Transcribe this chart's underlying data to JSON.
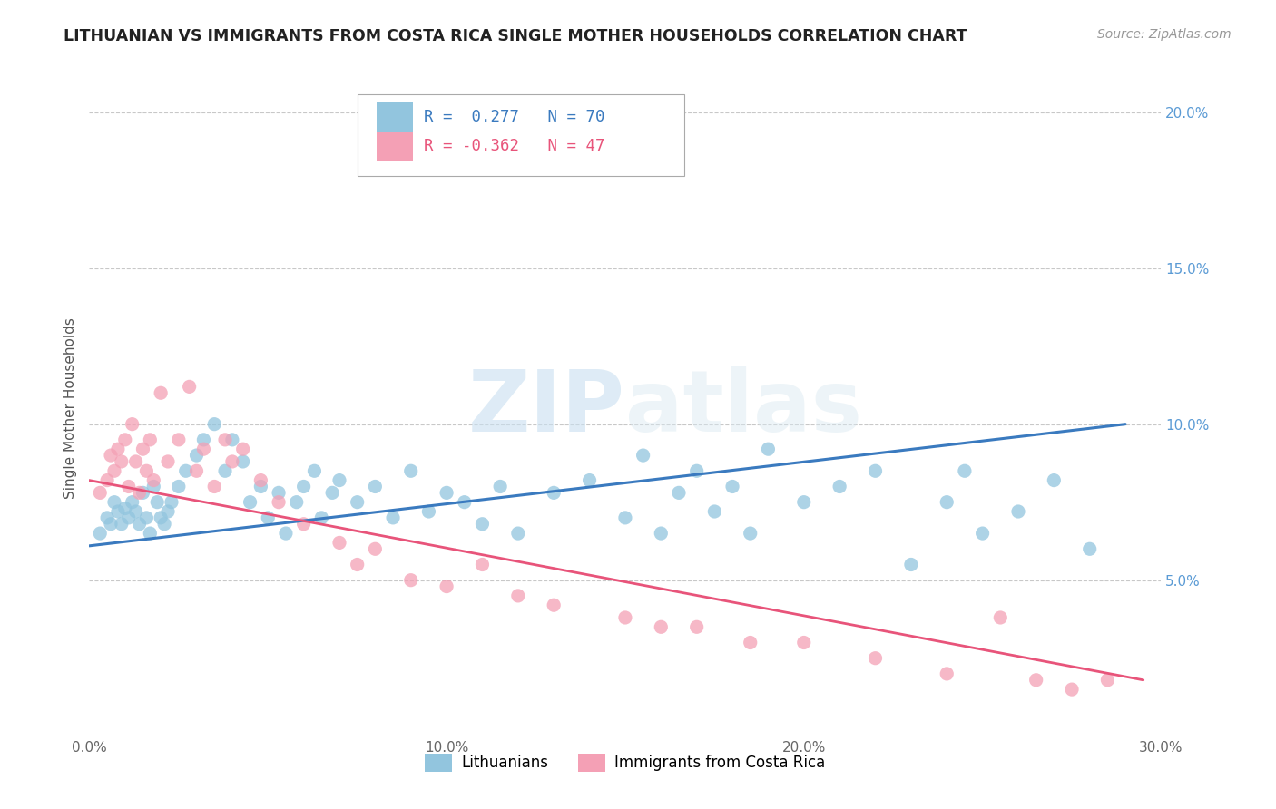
{
  "title": "LITHUANIAN VS IMMIGRANTS FROM COSTA RICA SINGLE MOTHER HOUSEHOLDS CORRELATION CHART",
  "source": "Source: ZipAtlas.com",
  "ylabel": "Single Mother Households",
  "xlim": [
    0.0,
    0.3
  ],
  "ylim": [
    0.0,
    0.21
  ],
  "yticks": [
    0.05,
    0.1,
    0.15,
    0.2
  ],
  "ytick_labels": [
    "5.0%",
    "10.0%",
    "15.0%",
    "20.0%"
  ],
  "xticks": [
    0.0,
    0.05,
    0.1,
    0.15,
    0.2,
    0.25,
    0.3
  ],
  "xtick_labels": [
    "0.0%",
    "",
    "10.0%",
    "",
    "20.0%",
    "",
    "30.0%"
  ],
  "legend_labels": [
    "Lithuanians",
    "Immigrants from Costa Rica"
  ],
  "blue_color": "#92c5de",
  "pink_color": "#f4a0b5",
  "blue_line_color": "#3a7abf",
  "pink_line_color": "#e8547a",
  "R_blue": 0.277,
  "N_blue": 70,
  "R_pink": -0.362,
  "N_pink": 47,
  "watermark_zip": "ZIP",
  "watermark_atlas": "atlas",
  "blue_scatter_x": [
    0.003,
    0.005,
    0.006,
    0.007,
    0.008,
    0.009,
    0.01,
    0.011,
    0.012,
    0.013,
    0.014,
    0.015,
    0.016,
    0.017,
    0.018,
    0.019,
    0.02,
    0.021,
    0.022,
    0.023,
    0.025,
    0.027,
    0.03,
    0.032,
    0.035,
    0.038,
    0.04,
    0.043,
    0.045,
    0.048,
    0.05,
    0.053,
    0.055,
    0.058,
    0.06,
    0.063,
    0.065,
    0.068,
    0.07,
    0.075,
    0.08,
    0.085,
    0.09,
    0.095,
    0.1,
    0.105,
    0.11,
    0.115,
    0.12,
    0.13,
    0.14,
    0.15,
    0.155,
    0.16,
    0.165,
    0.17,
    0.175,
    0.18,
    0.185,
    0.19,
    0.2,
    0.21,
    0.22,
    0.23,
    0.24,
    0.245,
    0.25,
    0.26,
    0.27,
    0.28
  ],
  "blue_scatter_y": [
    0.065,
    0.07,
    0.068,
    0.075,
    0.072,
    0.068,
    0.073,
    0.07,
    0.075,
    0.072,
    0.068,
    0.078,
    0.07,
    0.065,
    0.08,
    0.075,
    0.07,
    0.068,
    0.072,
    0.075,
    0.08,
    0.085,
    0.09,
    0.095,
    0.1,
    0.085,
    0.095,
    0.088,
    0.075,
    0.08,
    0.07,
    0.078,
    0.065,
    0.075,
    0.08,
    0.085,
    0.07,
    0.078,
    0.082,
    0.075,
    0.08,
    0.07,
    0.085,
    0.072,
    0.078,
    0.075,
    0.068,
    0.08,
    0.065,
    0.078,
    0.082,
    0.07,
    0.09,
    0.065,
    0.078,
    0.085,
    0.072,
    0.08,
    0.065,
    0.092,
    0.075,
    0.08,
    0.085,
    0.055,
    0.075,
    0.085,
    0.065,
    0.072,
    0.082,
    0.06
  ],
  "pink_scatter_x": [
    0.003,
    0.005,
    0.006,
    0.007,
    0.008,
    0.009,
    0.01,
    0.011,
    0.012,
    0.013,
    0.014,
    0.015,
    0.016,
    0.017,
    0.018,
    0.02,
    0.022,
    0.025,
    0.028,
    0.03,
    0.032,
    0.035,
    0.038,
    0.04,
    0.043,
    0.048,
    0.053,
    0.06,
    0.07,
    0.075,
    0.08,
    0.09,
    0.1,
    0.11,
    0.12,
    0.13,
    0.15,
    0.16,
    0.17,
    0.185,
    0.2,
    0.22,
    0.24,
    0.255,
    0.265,
    0.275,
    0.285
  ],
  "pink_scatter_y": [
    0.078,
    0.082,
    0.09,
    0.085,
    0.092,
    0.088,
    0.095,
    0.08,
    0.1,
    0.088,
    0.078,
    0.092,
    0.085,
    0.095,
    0.082,
    0.11,
    0.088,
    0.095,
    0.112,
    0.085,
    0.092,
    0.08,
    0.095,
    0.088,
    0.092,
    0.082,
    0.075,
    0.068,
    0.062,
    0.055,
    0.06,
    0.05,
    0.048,
    0.055,
    0.045,
    0.042,
    0.038,
    0.035,
    0.035,
    0.03,
    0.03,
    0.025,
    0.02,
    0.038,
    0.018,
    0.015,
    0.018
  ]
}
